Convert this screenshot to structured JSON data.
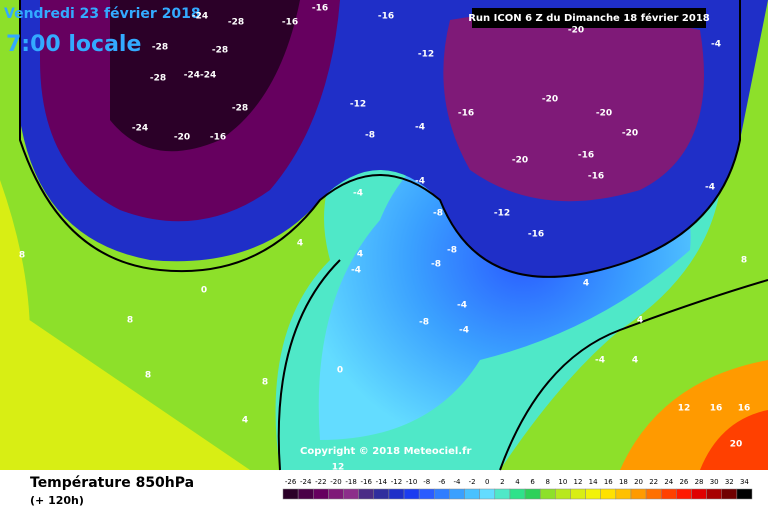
{
  "header": {
    "date": "Vendredi 23 février 2018",
    "time": "7:00 locale",
    "run": "Run ICON 6 Z du Dimanche 18 février 2018"
  },
  "copyright": "Copyright © 2018 Meteociel.fr",
  "footer": {
    "title": "Température 850hPa",
    "lead": "(+ 120h)"
  },
  "map_labels": [
    "-28",
    "-24",
    "-28",
    "-16",
    "-16",
    "-28",
    "-28",
    "-24-24",
    "-28",
    "-24",
    "-20",
    "-16",
    "-12",
    "-16",
    "-8",
    "-4",
    "-16",
    "-12",
    "-4",
    "-4",
    "-8",
    "-4",
    "-8",
    "-8",
    "-4",
    "-4",
    "-8",
    "-12",
    "-16",
    "-20",
    "-20",
    "-20",
    "-20",
    "-16",
    "-16",
    "-20",
    "-4",
    "-4",
    "-4",
    "0",
    "4",
    "4",
    "8",
    "8",
    "8",
    "4",
    "0",
    "4",
    "4",
    "4",
    "8",
    "12",
    "16",
    "16",
    "20",
    "8",
    "12"
  ],
  "colorbar": {
    "ticks": [
      -26,
      -24,
      -22,
      -20,
      -18,
      -16,
      -14,
      -12,
      -10,
      -8,
      -6,
      -4,
      -2,
      0,
      2,
      4,
      6,
      8,
      10,
      12,
      14,
      16,
      18,
      20,
      22,
      24,
      26,
      28,
      30,
      32,
      34
    ],
    "colors": [
      "#2b0028",
      "#4a0047",
      "#66005f",
      "#7f1a78",
      "#8c2e8a",
      "#4b2c86",
      "#302e9e",
      "#1f2fc8",
      "#1c3cf0",
      "#2a5cff",
      "#2f7dff",
      "#3aa0ff",
      "#49c1ff",
      "#63dcff",
      "#4fe8c8",
      "#2fe28a",
      "#2ed15a",
      "#8de02a",
      "#b8e81e",
      "#d8ee14",
      "#f2f20a",
      "#ffe100",
      "#ffc000",
      "#ff9a00",
      "#ff7000",
      "#ff4000",
      "#ff1a00",
      "#e00000",
      "#a80000",
      "#700000",
      "#000000"
    ]
  }
}
